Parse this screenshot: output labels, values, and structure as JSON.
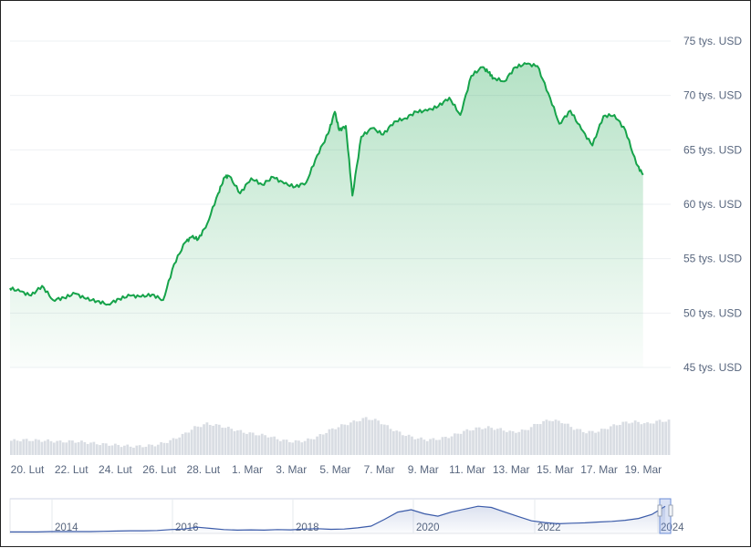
{
  "chart_data": {
    "type": "area",
    "title": "",
    "xlabel": "",
    "ylabel": "",
    "ylim": [
      45000,
      75000
    ],
    "grid": true,
    "y_ticks": [
      {
        "value": 75000,
        "label": "75 tys. USD"
      },
      {
        "value": 70000,
        "label": "70 tys. USD"
      },
      {
        "value": 65000,
        "label": "65 tys. USD"
      },
      {
        "value": 60000,
        "label": "60 tys. USD"
      },
      {
        "value": 55000,
        "label": "55 tys. USD"
      },
      {
        "value": 50000,
        "label": "50 tys. USD"
      },
      {
        "value": 45000,
        "label": "45 tys. USD"
      }
    ],
    "x_ticks": [
      "20. Lut",
      "22. Lut",
      "24. Lut",
      "26. Lut",
      "28. Lut",
      "1. Mar",
      "3. Mar",
      "5. Mar",
      "7. Mar",
      "9. Mar",
      "11. Mar",
      "13. Mar",
      "15. Mar",
      "17. Mar",
      "19. Mar"
    ],
    "series": [
      {
        "color": "#16a34a",
        "x": [
          0,
          0.5,
          1,
          1.5,
          2,
          2.5,
          3,
          3.5,
          4,
          4.5,
          5,
          5.5,
          6,
          6.5,
          7,
          7.5,
          8,
          8.3,
          8.6,
          9,
          9.5,
          9.8,
          10,
          10.5,
          11,
          11.5,
          12,
          12.5,
          13,
          13.5,
          14,
          14.5,
          14.8,
          15,
          15.3,
          15.6,
          16,
          16.5,
          17,
          17.5,
          18,
          18.5,
          19,
          19.5,
          20,
          20.5,
          21,
          21.5,
          21.8,
          22,
          22.5,
          23,
          23.5,
          24,
          24.5,
          25,
          25.5,
          26,
          26.5,
          27,
          27.5,
          28,
          28.5,
          28.8
        ],
        "values": [
          52300,
          52000,
          51600,
          52500,
          51200,
          51400,
          51800,
          51300,
          51100,
          50800,
          51300,
          51600,
          51500,
          51700,
          51200,
          54500,
          56500,
          57000,
          56800,
          58200,
          61000,
          62500,
          62600,
          61000,
          62400,
          61800,
          62500,
          61900,
          61600,
          62000,
          64500,
          66500,
          68500,
          66800,
          67200,
          60800,
          66200,
          67000,
          66400,
          67600,
          67900,
          68500,
          68600,
          69000,
          69800,
          68200,
          71800,
          72600,
          72100,
          71600,
          71300,
          72600,
          72900,
          72700,
          70200,
          67400,
          68600,
          66900,
          65400,
          68100,
          68200,
          66800,
          63700,
          62700
        ]
      }
    ],
    "volume": {
      "color": "#d9dde3",
      "values": [
        0.3,
        0.32,
        0.31,
        0.3,
        0.28,
        0.29,
        0.27,
        0.24,
        0.22,
        0.2,
        0.18,
        0.19,
        0.22,
        0.3,
        0.42,
        0.58,
        0.66,
        0.62,
        0.55,
        0.48,
        0.44,
        0.4,
        0.32,
        0.28,
        0.3,
        0.38,
        0.52,
        0.62,
        0.7,
        0.78,
        0.72,
        0.56,
        0.44,
        0.36,
        0.32,
        0.34,
        0.4,
        0.5,
        0.56,
        0.58,
        0.54,
        0.48,
        0.52,
        0.66,
        0.74,
        0.7,
        0.56,
        0.48,
        0.5,
        0.6,
        0.68,
        0.7,
        0.66,
        0.72
      ]
    },
    "navigator": {
      "x_ticks": [
        "2014",
        "2016",
        "2018",
        "2020",
        "2022",
        "2024"
      ],
      "color": "#3b5ba9",
      "values": [
        0.02,
        0.02,
        0.02,
        0.03,
        0.03,
        0.03,
        0.03,
        0.04,
        0.05,
        0.06,
        0.06,
        0.07,
        0.1,
        0.12,
        0.18,
        0.14,
        0.1,
        0.08,
        0.09,
        0.08,
        0.1,
        0.09,
        0.12,
        0.13,
        0.11,
        0.12,
        0.16,
        0.22,
        0.45,
        0.7,
        0.78,
        0.64,
        0.56,
        0.7,
        0.8,
        0.9,
        0.86,
        0.7,
        0.55,
        0.4,
        0.34,
        0.3,
        0.32,
        0.33,
        0.36,
        0.38,
        0.42,
        0.48,
        0.62,
        0.9
      ]
    }
  }
}
